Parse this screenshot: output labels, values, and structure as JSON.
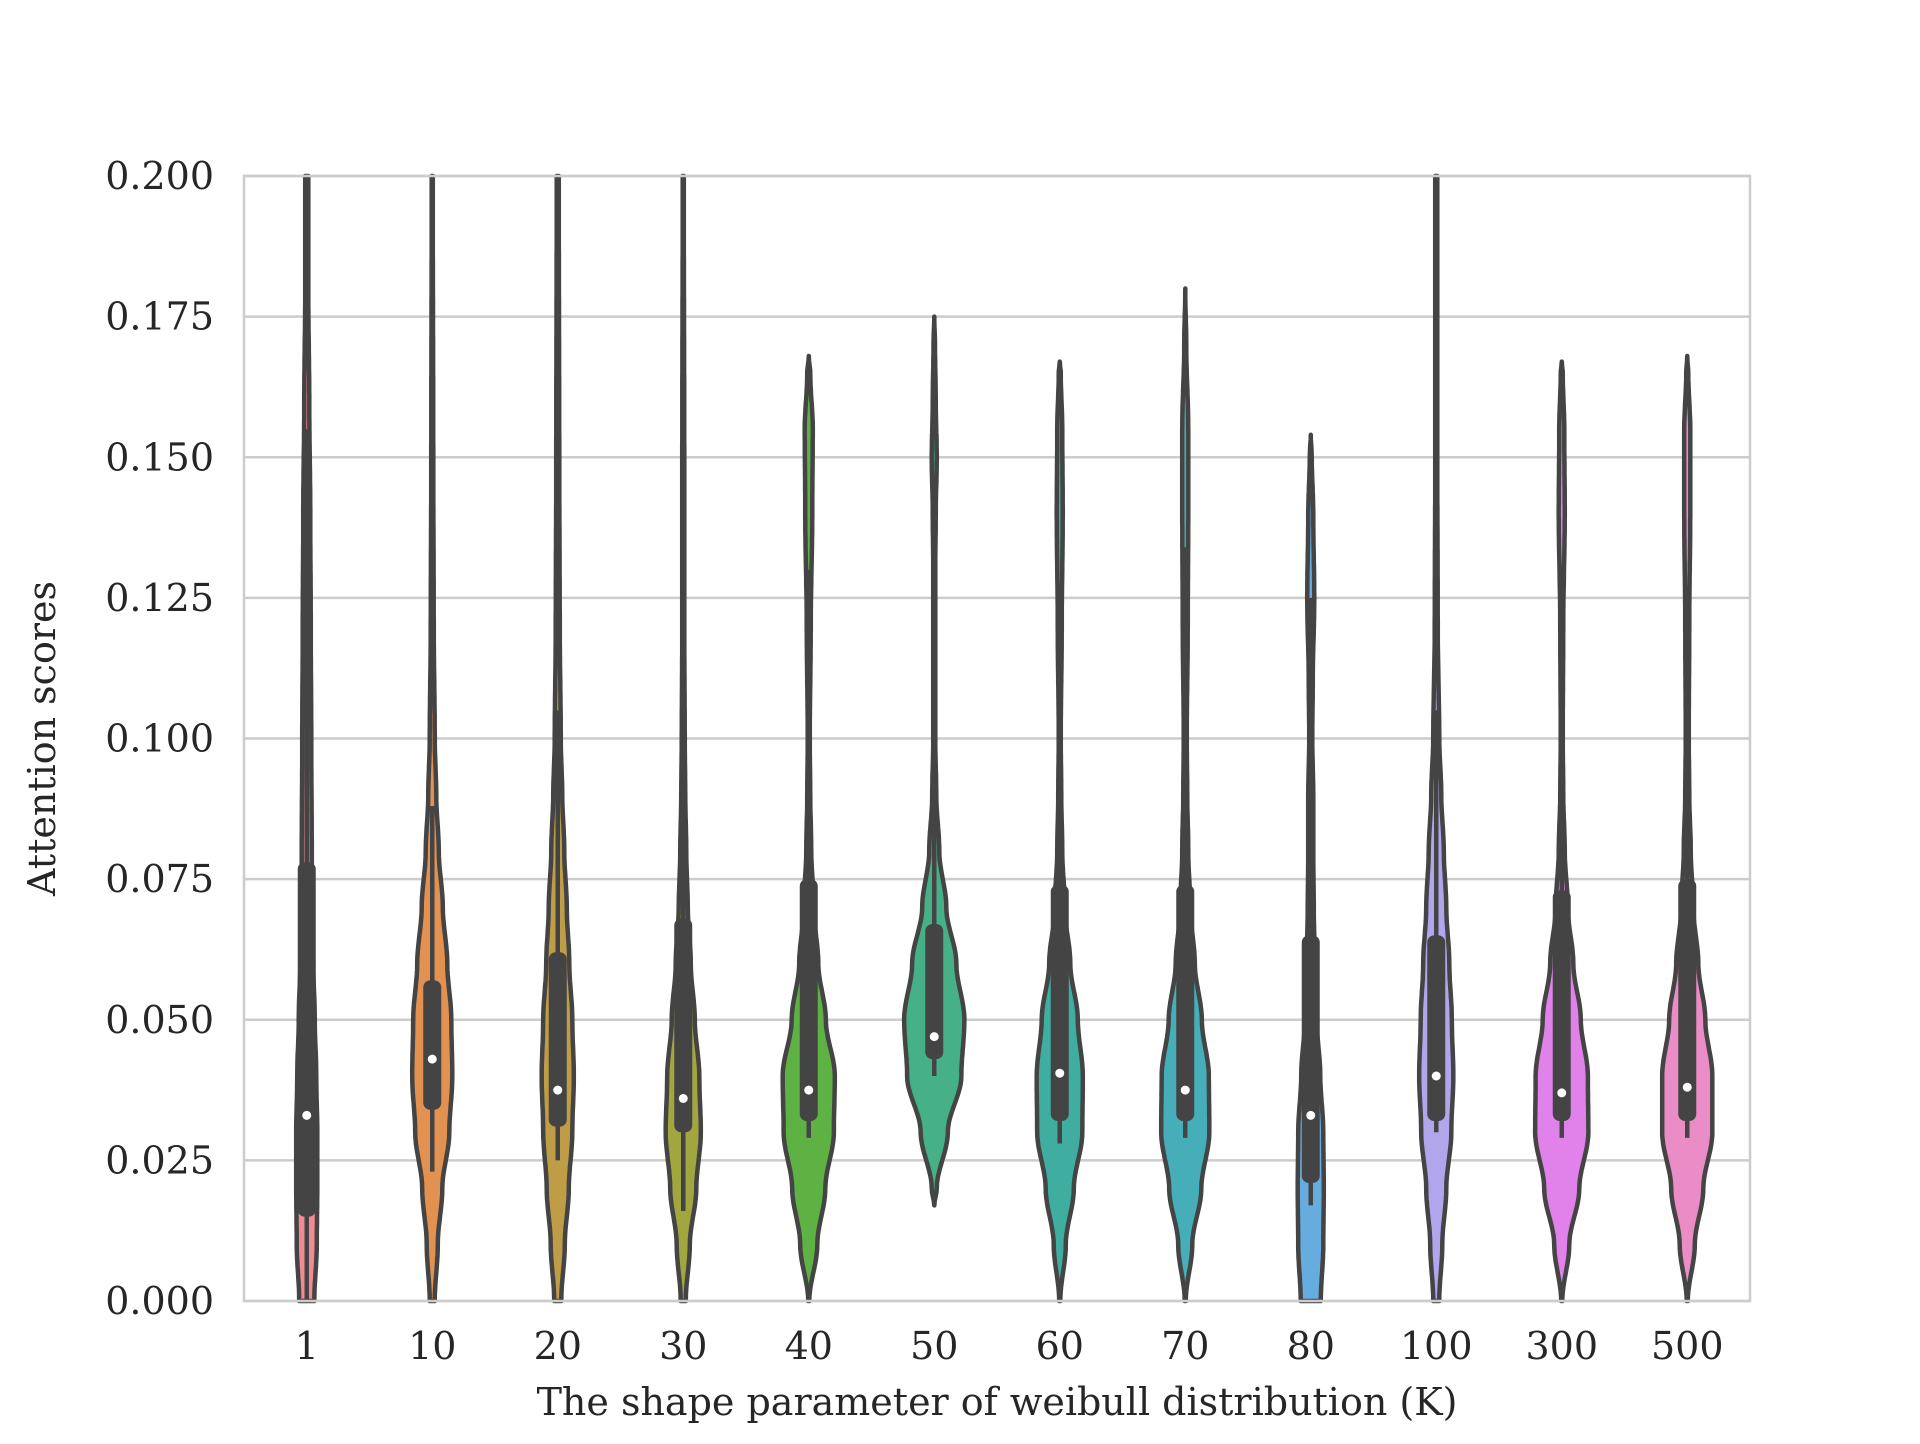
{
  "chart_data": {
    "type": "violin",
    "title": "",
    "xlabel": "The shape parameter of weibull distribution (K)",
    "ylabel": "Attention scores",
    "ylim": [
      0,
      0.2
    ],
    "yticks": [
      "0.000",
      "0.025",
      "0.050",
      "0.075",
      "0.100",
      "0.125",
      "0.150",
      "0.175",
      "0.200"
    ],
    "ytick_values": [
      0,
      0.025,
      0.05,
      0.075,
      0.1,
      0.125,
      0.15,
      0.175,
      0.2
    ],
    "grid": true,
    "legend": "none",
    "categories": [
      "1",
      "10",
      "20",
      "30",
      "40",
      "50",
      "60",
      "70",
      "80",
      "100",
      "300",
      "500"
    ],
    "colors": [
      "#f08a93",
      "#e39150",
      "#bf9d46",
      "#a1a63e",
      "#5eb243",
      "#46b187",
      "#3fad9f",
      "#45aeb9",
      "#66acdf",
      "#b1a6ec",
      "#e082e9",
      "#ea8cc6"
    ],
    "stats": [
      {
        "median": 0.033,
        "q1": 0.015,
        "q3": 0.078,
        "whisker_low": 0.0,
        "whisker_high": 0.155
      },
      {
        "median": 0.043,
        "q1": 0.034,
        "q3": 0.057,
        "whisker_low": 0.023,
        "whisker_high": 0.088
      },
      {
        "median": 0.0375,
        "q1": 0.031,
        "q3": 0.062,
        "whisker_low": 0.025,
        "whisker_high": 0.105
      },
      {
        "median": 0.036,
        "q1": 0.03,
        "q3": 0.068,
        "whisker_low": 0.016,
        "whisker_high": 0.117
      },
      {
        "median": 0.0375,
        "q1": 0.032,
        "q3": 0.075,
        "whisker_low": 0.029,
        "whisker_high": 0.13
      },
      {
        "median": 0.047,
        "q1": 0.043,
        "q3": 0.067,
        "whisker_low": 0.04,
        "whisker_high": 0.089
      },
      {
        "median": 0.0405,
        "q1": 0.032,
        "q3": 0.074,
        "whisker_low": 0.028,
        "whisker_high": 0.123
      },
      {
        "median": 0.0375,
        "q1": 0.032,
        "q3": 0.074,
        "whisker_low": 0.029,
        "whisker_high": 0.134
      },
      {
        "median": 0.033,
        "q1": 0.021,
        "q3": 0.065,
        "whisker_low": 0.017,
        "whisker_high": 0.125
      },
      {
        "median": 0.04,
        "q1": 0.032,
        "q3": 0.065,
        "whisker_low": 0.03,
        "whisker_high": 0.105
      },
      {
        "median": 0.037,
        "q1": 0.032,
        "q3": 0.073,
        "whisker_low": 0.029,
        "whisker_high": 0.13
      },
      {
        "median": 0.038,
        "q1": 0.032,
        "q3": 0.075,
        "whisker_low": 0.029,
        "whisker_high": 0.127
      }
    ],
    "density": [
      [
        [
          0.0,
          0.15
        ],
        [
          0.01,
          0.2
        ],
        [
          0.02,
          0.21
        ],
        [
          0.03,
          0.21
        ],
        [
          0.04,
          0.19
        ],
        [
          0.05,
          0.16
        ],
        [
          0.06,
          0.13
        ],
        [
          0.07,
          0.11
        ],
        [
          0.08,
          0.1
        ],
        [
          0.1,
          0.09
        ],
        [
          0.12,
          0.08
        ],
        [
          0.14,
          0.07
        ],
        [
          0.16,
          0.05
        ],
        [
          0.18,
          0.03
        ],
        [
          0.2,
          0.03
        ]
      ],
      [
        [
          0.0,
          0.05
        ],
        [
          0.01,
          0.11
        ],
        [
          0.02,
          0.2
        ],
        [
          0.03,
          0.34
        ],
        [
          0.04,
          0.4
        ],
        [
          0.05,
          0.38
        ],
        [
          0.06,
          0.3
        ],
        [
          0.07,
          0.21
        ],
        [
          0.08,
          0.13
        ],
        [
          0.09,
          0.08
        ],
        [
          0.1,
          0.05
        ],
        [
          0.12,
          0.03
        ],
        [
          0.15,
          0.02
        ],
        [
          0.2,
          0.01
        ]
      ],
      [
        [
          0.0,
          0.07
        ],
        [
          0.01,
          0.14
        ],
        [
          0.02,
          0.22
        ],
        [
          0.03,
          0.29
        ],
        [
          0.04,
          0.32
        ],
        [
          0.05,
          0.29
        ],
        [
          0.06,
          0.23
        ],
        [
          0.07,
          0.18
        ],
        [
          0.08,
          0.13
        ],
        [
          0.09,
          0.09
        ],
        [
          0.1,
          0.06
        ],
        [
          0.12,
          0.04
        ],
        [
          0.15,
          0.03
        ],
        [
          0.2,
          0.02
        ]
      ],
      [
        [
          0.0,
          0.05
        ],
        [
          0.01,
          0.13
        ],
        [
          0.02,
          0.26
        ],
        [
          0.03,
          0.35
        ],
        [
          0.04,
          0.32
        ],
        [
          0.05,
          0.23
        ],
        [
          0.06,
          0.15
        ],
        [
          0.07,
          0.09
        ],
        [
          0.08,
          0.06
        ],
        [
          0.09,
          0.04
        ],
        [
          0.1,
          0.03
        ],
        [
          0.12,
          0.02
        ],
        [
          0.15,
          0.02
        ],
        [
          0.2,
          0.01
        ]
      ],
      [
        [
          0.0,
          0.01
        ],
        [
          0.01,
          0.17
        ],
        [
          0.02,
          0.33
        ],
        [
          0.03,
          0.5
        ],
        [
          0.04,
          0.52
        ],
        [
          0.05,
          0.34
        ],
        [
          0.06,
          0.19
        ],
        [
          0.07,
          0.1
        ],
        [
          0.08,
          0.05
        ],
        [
          0.09,
          0.03
        ],
        [
          0.1,
          0.02
        ],
        [
          0.12,
          0.04
        ],
        [
          0.14,
          0.07
        ],
        [
          0.155,
          0.08
        ],
        [
          0.165,
          0.03
        ],
        [
          0.168,
          0.0
        ]
      ],
      [
        [
          0.017,
          0.0
        ],
        [
          0.02,
          0.05
        ],
        [
          0.03,
          0.27
        ],
        [
          0.04,
          0.54
        ],
        [
          0.05,
          0.6
        ],
        [
          0.06,
          0.44
        ],
        [
          0.07,
          0.24
        ],
        [
          0.08,
          0.1
        ],
        [
          0.09,
          0.04
        ],
        [
          0.1,
          0.02
        ],
        [
          0.11,
          0.02
        ],
        [
          0.12,
          0.02
        ],
        [
          0.13,
          0.02
        ],
        [
          0.14,
          0.03
        ],
        [
          0.15,
          0.05
        ],
        [
          0.16,
          0.03
        ],
        [
          0.17,
          0.015
        ],
        [
          0.175,
          0.0
        ]
      ],
      [
        [
          0.0,
          0.01
        ],
        [
          0.01,
          0.12
        ],
        [
          0.02,
          0.28
        ],
        [
          0.03,
          0.45
        ],
        [
          0.04,
          0.46
        ],
        [
          0.05,
          0.36
        ],
        [
          0.06,
          0.21
        ],
        [
          0.07,
          0.1
        ],
        [
          0.08,
          0.05
        ],
        [
          0.09,
          0.03
        ],
        [
          0.1,
          0.02
        ],
        [
          0.12,
          0.04
        ],
        [
          0.14,
          0.06
        ],
        [
          0.155,
          0.05
        ],
        [
          0.165,
          0.02
        ],
        [
          0.167,
          0.0
        ]
      ],
      [
        [
          0.0,
          0.01
        ],
        [
          0.01,
          0.14
        ],
        [
          0.02,
          0.32
        ],
        [
          0.03,
          0.48
        ],
        [
          0.04,
          0.47
        ],
        [
          0.05,
          0.33
        ],
        [
          0.06,
          0.19
        ],
        [
          0.07,
          0.1
        ],
        [
          0.08,
          0.06
        ],
        [
          0.09,
          0.04
        ],
        [
          0.1,
          0.03
        ],
        [
          0.12,
          0.05
        ],
        [
          0.14,
          0.06
        ],
        [
          0.155,
          0.06
        ],
        [
          0.17,
          0.02
        ],
        [
          0.18,
          0.0
        ]
      ],
      [
        [
          0.0,
          0.2
        ],
        [
          0.01,
          0.25
        ],
        [
          0.02,
          0.26
        ],
        [
          0.03,
          0.25
        ],
        [
          0.04,
          0.19
        ],
        [
          0.05,
          0.12
        ],
        [
          0.06,
          0.08
        ],
        [
          0.07,
          0.06
        ],
        [
          0.08,
          0.05
        ],
        [
          0.09,
          0.05
        ],
        [
          0.1,
          0.03
        ],
        [
          0.11,
          0.04
        ],
        [
          0.125,
          0.07
        ],
        [
          0.14,
          0.05
        ],
        [
          0.15,
          0.02
        ],
        [
          0.154,
          0.0
        ]
      ],
      [
        [
          0.0,
          0.06
        ],
        [
          0.01,
          0.12
        ],
        [
          0.02,
          0.2
        ],
        [
          0.03,
          0.3
        ],
        [
          0.04,
          0.34
        ],
        [
          0.05,
          0.31
        ],
        [
          0.06,
          0.26
        ],
        [
          0.07,
          0.2
        ],
        [
          0.08,
          0.15
        ],
        [
          0.09,
          0.1
        ],
        [
          0.1,
          0.06
        ],
        [
          0.12,
          0.03
        ],
        [
          0.15,
          0.02
        ],
        [
          0.2,
          0.02
        ]
      ],
      [
        [
          0.0,
          0.01
        ],
        [
          0.01,
          0.15
        ],
        [
          0.02,
          0.35
        ],
        [
          0.03,
          0.53
        ],
        [
          0.04,
          0.52
        ],
        [
          0.05,
          0.38
        ],
        [
          0.06,
          0.23
        ],
        [
          0.07,
          0.12
        ],
        [
          0.08,
          0.06
        ],
        [
          0.09,
          0.03
        ],
        [
          0.1,
          0.02
        ],
        [
          0.12,
          0.03
        ],
        [
          0.14,
          0.06
        ],
        [
          0.155,
          0.05
        ],
        [
          0.165,
          0.02
        ],
        [
          0.167,
          0.0
        ]
      ],
      [
        [
          0.0,
          0.01
        ],
        [
          0.01,
          0.15
        ],
        [
          0.02,
          0.32
        ],
        [
          0.03,
          0.5
        ],
        [
          0.04,
          0.5
        ],
        [
          0.05,
          0.36
        ],
        [
          0.06,
          0.22
        ],
        [
          0.07,
          0.12
        ],
        [
          0.08,
          0.07
        ],
        [
          0.09,
          0.04
        ],
        [
          0.1,
          0.03
        ],
        [
          0.12,
          0.04
        ],
        [
          0.14,
          0.06
        ],
        [
          0.155,
          0.06
        ],
        [
          0.165,
          0.02
        ],
        [
          0.168,
          0.0
        ]
      ]
    ]
  }
}
